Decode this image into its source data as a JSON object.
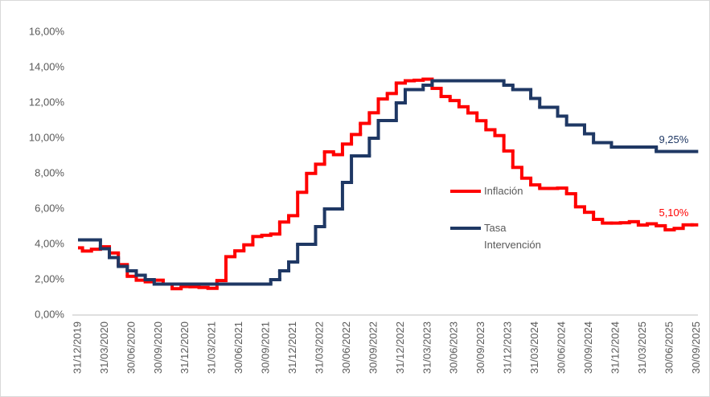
{
  "chart_data": {
    "type": "step-line",
    "categories": [
      "31/12/2019",
      null,
      null,
      "31/03/2020",
      null,
      null,
      "30/06/2020",
      null,
      null,
      "30/09/2020",
      null,
      null,
      "31/12/2020",
      null,
      null,
      "31/03/2021",
      null,
      null,
      "30/06/2021",
      null,
      null,
      "30/09/2021",
      null,
      null,
      "31/12/2021",
      null,
      null,
      "31/03/2022",
      null,
      null,
      "30/06/2022",
      null,
      null,
      "30/09/2022",
      null,
      null,
      "31/12/2022",
      null,
      null,
      "31/03/2023",
      null,
      null,
      "30/06/2023",
      null,
      null,
      "30/09/2023",
      null,
      null,
      "31/12/2023",
      null,
      null,
      "31/03/2024",
      null,
      null,
      "30/06/2024",
      null,
      null,
      "30/09/2024",
      null,
      null,
      "31/12/2024",
      null,
      null,
      "31/03/2025",
      null,
      null,
      "30/06/2025",
      null,
      null,
      "30/09/2025"
    ],
    "series": [
      {
        "name": "Inflación",
        "color": "#ff0000",
        "values": [
          3.8,
          3.62,
          3.72,
          3.86,
          3.51,
          2.85,
          2.19,
          1.97,
          1.88,
          1.97,
          1.75,
          1.49,
          1.61,
          1.6,
          1.56,
          1.51,
          1.95,
          3.3,
          3.63,
          3.97,
          4.44,
          4.51,
          4.58,
          5.26,
          5.62,
          6.94,
          8.01,
          8.53,
          9.23,
          9.07,
          9.67,
          10.21,
          10.84,
          11.44,
          12.22,
          12.53,
          13.12,
          13.25,
          13.28,
          13.34,
          12.82,
          12.36,
          12.13,
          11.78,
          11.43,
          10.99,
          10.48,
          10.15,
          9.28,
          8.35,
          7.74,
          7.36,
          7.16,
          7.16,
          7.18,
          6.86,
          6.12,
          5.81,
          5.41,
          5.2,
          5.2,
          5.22,
          5.28,
          5.09,
          5.16,
          5.05,
          4.82,
          4.9,
          5.1,
          5.1
        ],
        "value_labels": [
          null,
          null,
          null,
          null,
          null,
          null,
          null,
          null,
          null,
          null,
          null,
          null,
          null,
          null,
          null,
          null,
          null,
          null,
          null,
          null,
          null,
          null,
          null,
          null,
          null,
          null,
          null,
          null,
          null,
          null,
          null,
          null,
          null,
          null,
          null,
          null,
          null,
          null,
          null,
          null,
          null,
          null,
          null,
          null,
          null,
          null,
          null,
          null,
          null,
          null,
          null,
          null,
          null,
          null,
          null,
          null,
          null,
          null,
          null,
          null,
          null,
          null,
          null,
          null,
          null,
          null,
          null,
          null,
          null,
          "5,10%"
        ]
      },
      {
        "name": "Tasa Intervención",
        "color": "#1f3864",
        "values": [
          4.25,
          4.25,
          4.25,
          3.75,
          3.25,
          2.75,
          2.5,
          2.25,
          2.0,
          1.75,
          1.75,
          1.75,
          1.75,
          1.75,
          1.75,
          1.75,
          1.75,
          1.75,
          1.75,
          1.75,
          1.75,
          1.75,
          2.0,
          2.5,
          3.0,
          4.0,
          4.0,
          5.0,
          6.0,
          6.0,
          7.5,
          9.0,
          9.0,
          10.0,
          11.0,
          11.0,
          12.0,
          12.75,
          12.75,
          13.0,
          13.25,
          13.25,
          13.25,
          13.25,
          13.25,
          13.25,
          13.25,
          13.25,
          13.0,
          12.75,
          12.75,
          12.25,
          11.75,
          11.75,
          11.25,
          10.75,
          10.75,
          10.25,
          9.75,
          9.75,
          9.5,
          9.5,
          9.5,
          9.5,
          9.5,
          9.25,
          9.25,
          9.25,
          9.25,
          9.25
        ],
        "value_labels": [
          null,
          null,
          null,
          null,
          null,
          null,
          null,
          null,
          null,
          null,
          null,
          null,
          null,
          null,
          null,
          null,
          null,
          null,
          null,
          null,
          null,
          null,
          null,
          null,
          null,
          null,
          null,
          null,
          null,
          null,
          null,
          null,
          null,
          null,
          null,
          null,
          null,
          null,
          null,
          null,
          null,
          null,
          null,
          null,
          null,
          null,
          null,
          null,
          null,
          null,
          null,
          null,
          null,
          null,
          null,
          null,
          null,
          null,
          null,
          null,
          null,
          null,
          null,
          null,
          null,
          null,
          null,
          null,
          null,
          "9,25%"
        ]
      }
    ],
    "ylim": [
      0,
      16
    ],
    "yticks": [
      {
        "value": 0,
        "label": "0,00%"
      },
      {
        "value": 2,
        "label": "2,00%"
      },
      {
        "value": 4,
        "label": "4,00%"
      },
      {
        "value": 6,
        "label": "6,00%"
      },
      {
        "value": 8,
        "label": "8,00%"
      },
      {
        "value": 10,
        "label": "10,00%"
      },
      {
        "value": 12,
        "label": "12,00%"
      },
      {
        "value": 14,
        "label": "14,00%"
      },
      {
        "value": 16,
        "label": "16,00%"
      }
    ],
    "grid": false
  }
}
